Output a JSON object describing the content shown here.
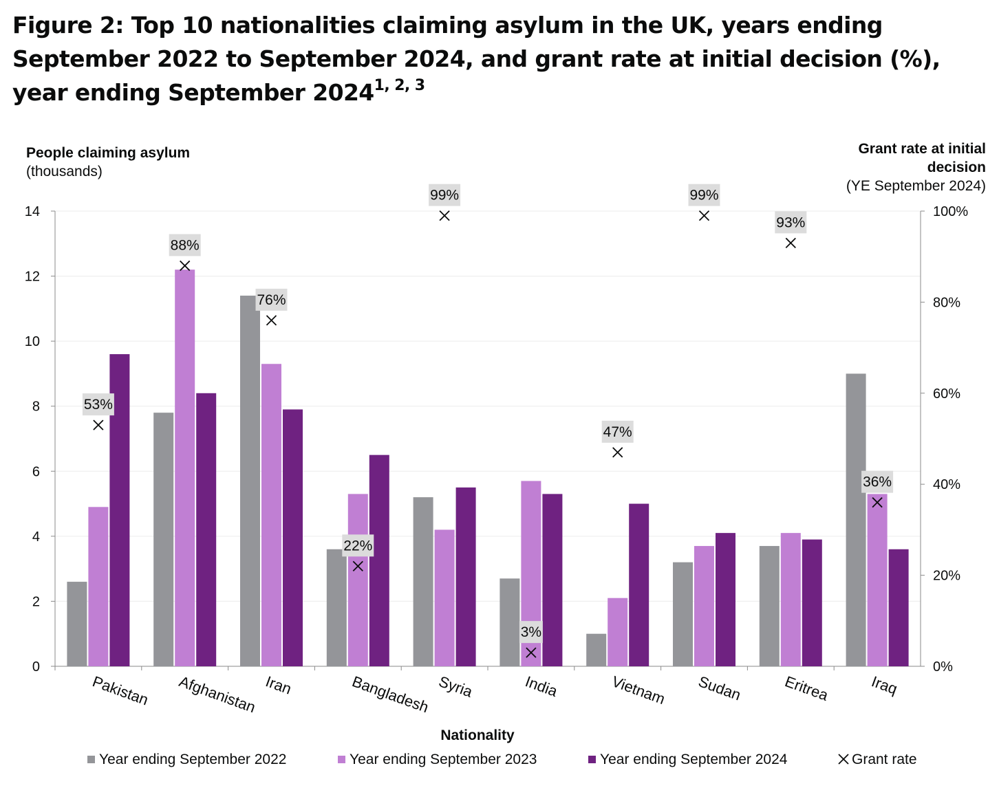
{
  "title": {
    "text": "Figure 2: Top 10 nationalities claiming asylum in the UK, years ending September 2022 to September 2024, and grant rate at initial decision (%), year ending September 2024",
    "footnotes": "1, 2, 3"
  },
  "chart_data": {
    "type": "bar",
    "xlabel": "Nationality",
    "ylabel_left": {
      "bold": "People claiming asylum",
      "normal": "(thousands)"
    },
    "ylabel_right": {
      "line1": "Grant rate at initial",
      "line2": "decision",
      "line3": "(YE September 2024)"
    },
    "ylim_left": [
      0,
      14
    ],
    "ylim_right": [
      0,
      100
    ],
    "left_ticks": [
      "0",
      "2",
      "4",
      "6",
      "8",
      "10",
      "12",
      "14"
    ],
    "right_ticks": [
      "0%",
      "20%",
      "40%",
      "60%",
      "80%",
      "100%"
    ],
    "grid": true,
    "legend_position": "bottom",
    "categories": [
      "Pakistan",
      "Afghanistan",
      "Iran",
      "Bangladesh",
      "Syria",
      "India",
      "Vietnam",
      "Sudan",
      "Eritrea",
      "Iraq"
    ],
    "series": [
      {
        "name": "Year ending September 2022",
        "color": "#949599",
        "values": [
          2.6,
          7.8,
          11.4,
          3.6,
          5.2,
          2.7,
          1.0,
          3.2,
          3.7,
          9.0
        ]
      },
      {
        "name": "Year ending September 2023",
        "color": "#c07fd3",
        "values": [
          4.9,
          12.2,
          9.3,
          5.3,
          4.2,
          5.7,
          2.1,
          3.7,
          4.1,
          5.3
        ]
      },
      {
        "name": "Year ending September 2024",
        "color": "#6f2281",
        "values": [
          9.6,
          8.4,
          7.9,
          6.5,
          5.5,
          5.3,
          5.0,
          4.1,
          3.9,
          3.6
        ]
      }
    ],
    "grant_rate": {
      "name": "Grant rate",
      "values": [
        53,
        88,
        76,
        22,
        99,
        3,
        47,
        99,
        93,
        36
      ],
      "labels": [
        "53%",
        "88%",
        "76%",
        "22%",
        "99%",
        "3%",
        "47%",
        "99%",
        "93%",
        "36%"
      ]
    }
  }
}
